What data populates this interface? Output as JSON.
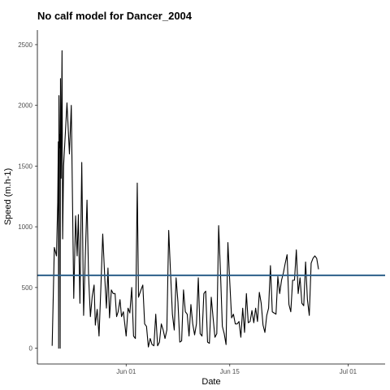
{
  "chart_data": {
    "type": "line",
    "title": "No calf model for Dancer_2004",
    "xlabel": "Date",
    "ylabel": "Speed (m.h-1)",
    "xlim": [
      "2004-05-20",
      "2004-07-06"
    ],
    "ylim": [
      -130,
      2620
    ],
    "x_ticks": [
      {
        "date": "2004-06-01",
        "label": "Jun 01"
      },
      {
        "date": "2004-06-15",
        "label": "Jun 15"
      },
      {
        "date": "2004-07-01",
        "label": "Jul 01"
      }
    ],
    "y_ticks": [
      0,
      500,
      1000,
      1500,
      2000,
      2500
    ],
    "reference_line": {
      "y": 600,
      "color": "#2c5f8a"
    },
    "line_color": "#000000",
    "grid": false,
    "series": [
      {
        "points": [
          [
            "2004-05-22T00:00",
            20
          ],
          [
            "2004-05-22T07:00",
            830
          ],
          [
            "2004-05-22T14:00",
            760
          ],
          [
            "2004-05-22T18:00",
            1200
          ],
          [
            "2004-05-22T20:00",
            1700
          ],
          [
            "2004-05-22T21:00",
            0
          ],
          [
            "2004-05-22T22:00",
            2080
          ],
          [
            "2004-05-23T00:00",
            1650
          ],
          [
            "2004-05-23T01:00",
            1760
          ],
          [
            "2004-05-23T02:00",
            0
          ],
          [
            "2004-05-23T03:00",
            2220
          ],
          [
            "2004-05-23T05:00",
            1400
          ],
          [
            "2004-05-23T08:00",
            2450
          ],
          [
            "2004-05-23T10:00",
            900
          ],
          [
            "2004-05-23T13:00",
            1500
          ],
          [
            "2004-05-24T00:00",
            2020
          ],
          [
            "2004-05-24T08:00",
            1600
          ],
          [
            "2004-05-24T14:00",
            2000
          ],
          [
            "2004-05-24T22:00",
            410
          ],
          [
            "2004-05-25T04:00",
            1090
          ],
          [
            "2004-05-25T09:00",
            760
          ],
          [
            "2004-05-25T13:00",
            1100
          ],
          [
            "2004-05-25T18:00",
            370
          ],
          [
            "2004-05-26T00:00",
            1530
          ],
          [
            "2004-05-26T06:00",
            270
          ],
          [
            "2004-05-26T12:00",
            800
          ],
          [
            "2004-05-26T17:00",
            1220
          ],
          [
            "2004-05-26T22:00",
            600
          ],
          [
            "2004-05-27T04:00",
            260
          ],
          [
            "2004-05-27T10:00",
            430
          ],
          [
            "2004-05-27T16:00",
            520
          ],
          [
            "2004-05-27T20:00",
            190
          ],
          [
            "2004-05-28T02:00",
            320
          ],
          [
            "2004-05-28T08:00",
            100
          ],
          [
            "2004-05-28T14:00",
            500
          ],
          [
            "2004-05-28T20:00",
            940
          ],
          [
            "2004-05-29T03:00",
            560
          ],
          [
            "2004-05-29T08:00",
            330
          ],
          [
            "2004-05-29T13:00",
            660
          ],
          [
            "2004-05-29T18:00",
            250
          ],
          [
            "2004-05-30T00:00",
            480
          ],
          [
            "2004-05-30T06:00",
            450
          ],
          [
            "2004-05-30T12:00",
            450
          ],
          [
            "2004-05-30T17:00",
            260
          ],
          [
            "2004-05-30T22:00",
            300
          ],
          [
            "2004-05-31T04:00",
            400
          ],
          [
            "2004-05-31T09:00",
            260
          ],
          [
            "2004-05-31T15:00",
            300
          ],
          [
            "2004-06-01T00:00",
            100
          ],
          [
            "2004-06-01T06:00",
            330
          ],
          [
            "2004-06-01T12:00",
            290
          ],
          [
            "2004-06-01T18:00",
            500
          ],
          [
            "2004-06-02T00:00",
            100
          ],
          [
            "2004-06-02T06:00",
            80
          ],
          [
            "2004-06-02T12:00",
            1360
          ],
          [
            "2004-06-02T16:00",
            420
          ],
          [
            "2004-06-03T00:00",
            480
          ],
          [
            "2004-06-03T06:00",
            520
          ],
          [
            "2004-06-03T12:00",
            200
          ],
          [
            "2004-06-03T18:00",
            180
          ],
          [
            "2004-06-04T00:00",
            10
          ],
          [
            "2004-06-04T06:00",
            80
          ],
          [
            "2004-06-04T12:00",
            30
          ],
          [
            "2004-06-04T18:00",
            20
          ],
          [
            "2004-06-05T00:00",
            280
          ],
          [
            "2004-06-05T06:00",
            20
          ],
          [
            "2004-06-05T12:00",
            50
          ],
          [
            "2004-06-05T18:00",
            200
          ],
          [
            "2004-06-06T00:00",
            150
          ],
          [
            "2004-06-06T06:00",
            80
          ],
          [
            "2004-06-06T12:00",
            150
          ],
          [
            "2004-06-06T18:00",
            970
          ],
          [
            "2004-06-07T00:00",
            620
          ],
          [
            "2004-06-07T06:00",
            280
          ],
          [
            "2004-06-07T12:00",
            150
          ],
          [
            "2004-06-07T18:00",
            580
          ],
          [
            "2004-06-08T00:00",
            380
          ],
          [
            "2004-06-08T06:00",
            50
          ],
          [
            "2004-06-08T12:00",
            60
          ],
          [
            "2004-06-08T18:00",
            480
          ],
          [
            "2004-06-09T00:00",
            300
          ],
          [
            "2004-06-09T06:00",
            280
          ],
          [
            "2004-06-09T12:00",
            100
          ],
          [
            "2004-06-09T18:00",
            360
          ],
          [
            "2004-06-10T00:00",
            200
          ],
          [
            "2004-06-10T06:00",
            110
          ],
          [
            "2004-06-10T12:00",
            200
          ],
          [
            "2004-06-10T18:00",
            580
          ],
          [
            "2004-06-11T00:00",
            120
          ],
          [
            "2004-06-11T06:00",
            100
          ],
          [
            "2004-06-11T12:00",
            450
          ],
          [
            "2004-06-11T18:00",
            470
          ],
          [
            "2004-06-12T00:00",
            50
          ],
          [
            "2004-06-12T06:00",
            40
          ],
          [
            "2004-06-12T12:00",
            420
          ],
          [
            "2004-06-12T18:00",
            250
          ],
          [
            "2004-06-13T00:00",
            90
          ],
          [
            "2004-06-13T06:00",
            120
          ],
          [
            "2004-06-13T12:00",
            1010
          ],
          [
            "2004-06-13T18:00",
            620
          ],
          [
            "2004-06-14T00:00",
            180
          ],
          [
            "2004-06-14T06:00",
            120
          ],
          [
            "2004-06-14T12:00",
            30
          ],
          [
            "2004-06-14T18:00",
            870
          ],
          [
            "2004-06-15T00:00",
            550
          ],
          [
            "2004-06-15T06:00",
            250
          ],
          [
            "2004-06-15T12:00",
            280
          ],
          [
            "2004-06-15T18:00",
            200
          ],
          [
            "2004-06-16T00:00",
            200
          ],
          [
            "2004-06-16T06:00",
            220
          ],
          [
            "2004-06-16T12:00",
            90
          ],
          [
            "2004-06-16T18:00",
            330
          ],
          [
            "2004-06-17T00:00",
            130
          ],
          [
            "2004-06-17T06:00",
            450
          ],
          [
            "2004-06-17T12:00",
            210
          ],
          [
            "2004-06-17T18:00",
            220
          ],
          [
            "2004-06-18T00:00",
            310
          ],
          [
            "2004-06-18T06:00",
            210
          ],
          [
            "2004-06-18T12:00",
            330
          ],
          [
            "2004-06-18T18:00",
            220
          ],
          [
            "2004-06-19T00:00",
            460
          ],
          [
            "2004-06-19T06:00",
            370
          ],
          [
            "2004-06-19T12:00",
            190
          ],
          [
            "2004-06-19T18:00",
            130
          ],
          [
            "2004-06-20T00:00",
            270
          ],
          [
            "2004-06-20T06:00",
            330
          ],
          [
            "2004-06-20T12:00",
            680
          ],
          [
            "2004-06-20T18:00",
            300
          ],
          [
            "2004-06-21T00:00",
            290
          ],
          [
            "2004-06-21T06:00",
            280
          ],
          [
            "2004-06-21T12:00",
            590
          ],
          [
            "2004-06-21T18:00",
            450
          ],
          [
            "2004-06-22T00:00",
            560
          ],
          [
            "2004-06-22T06:00",
            620
          ],
          [
            "2004-06-22T12:00",
            700
          ],
          [
            "2004-06-22T18:00",
            770
          ],
          [
            "2004-06-23T00:00",
            360
          ],
          [
            "2004-06-23T06:00",
            300
          ],
          [
            "2004-06-23T12:00",
            560
          ],
          [
            "2004-06-23T18:00",
            560
          ],
          [
            "2004-06-24T00:00",
            810
          ],
          [
            "2004-06-24T06:00",
            450
          ],
          [
            "2004-06-24T12:00",
            580
          ],
          [
            "2004-06-24T18:00",
            370
          ],
          [
            "2004-06-25T00:00",
            350
          ],
          [
            "2004-06-25T06:00",
            710
          ],
          [
            "2004-06-25T12:00",
            400
          ],
          [
            "2004-06-25T18:00",
            270
          ],
          [
            "2004-06-26T00:00",
            700
          ],
          [
            "2004-06-26T06:00",
            740
          ],
          [
            "2004-06-26T12:00",
            760
          ],
          [
            "2004-06-26T18:00",
            740
          ],
          [
            "2004-06-27T00:00",
            650
          ]
        ]
      }
    ]
  }
}
